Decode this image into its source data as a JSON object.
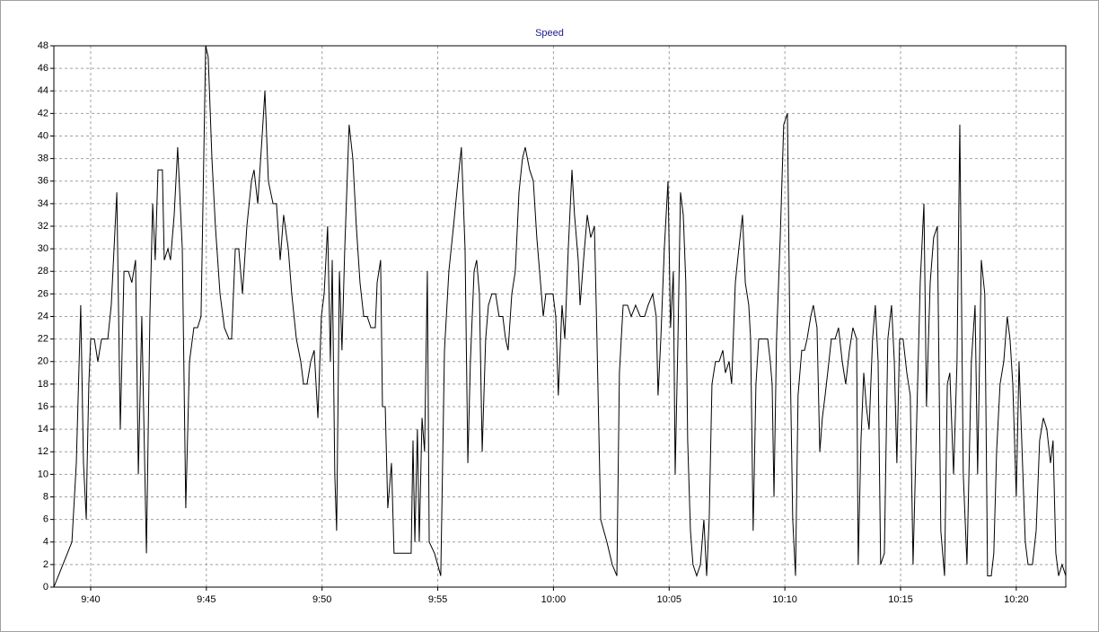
{
  "chart_data": {
    "type": "line",
    "title": "Speed",
    "x": [
      38.41,
      39.19,
      39.38,
      39.57,
      39.69,
      39.81,
      39.84,
      39.92,
      40.0,
      40.16,
      40.31,
      40.47,
      40.74,
      40.89,
      41.13,
      41.28,
      41.44,
      41.63,
      41.78,
      41.94,
      42.06,
      42.21,
      42.41,
      42.56,
      42.68,
      42.79,
      42.91,
      43.1,
      43.18,
      43.34,
      43.45,
      43.61,
      43.76,
      43.96,
      44.11,
      44.27,
      44.46,
      44.62,
      44.77,
      44.97,
      45.08,
      45.24,
      45.39,
      45.59,
      45.78,
      45.98,
      46.09,
      46.25,
      46.4,
      46.56,
      46.75,
      46.95,
      47.06,
      47.22,
      47.41,
      47.53,
      47.68,
      47.88,
      48.03,
      48.19,
      48.34,
      48.54,
      48.69,
      48.89,
      49.08,
      49.2,
      49.35,
      49.51,
      49.66,
      49.82,
      49.97,
      50.09,
      50.24,
      50.36,
      50.44,
      50.55,
      50.63,
      50.75,
      50.86,
      50.98,
      51.17,
      51.33,
      51.48,
      51.64,
      51.8,
      51.95,
      52.11,
      52.3,
      52.38,
      52.53,
      52.61,
      52.73,
      52.84,
      52.92,
      53.0,
      53.11,
      53.35,
      53.62,
      53.85,
      53.93,
      54.01,
      54.12,
      54.2,
      54.32,
      54.43,
      54.55,
      54.63,
      54.86,
      55.13,
      55.29,
      55.48,
      55.68,
      55.87,
      56.02,
      56.18,
      56.3,
      56.41,
      56.57,
      56.68,
      56.8,
      56.92,
      57.07,
      57.19,
      57.34,
      57.5,
      57.65,
      57.81,
      57.93,
      58.04,
      58.2,
      58.35,
      58.51,
      58.66,
      58.78,
      58.97,
      59.13,
      59.28,
      59.44,
      59.56,
      59.67,
      59.83,
      59.98,
      60.1,
      60.21,
      60.37,
      60.49,
      60.64,
      60.8,
      60.91,
      61.07,
      61.15,
      61.3,
      61.46,
      61.61,
      61.77,
      61.88,
      62.04,
      62.31,
      62.54,
      62.74,
      62.85,
      63.01,
      63.2,
      63.36,
      63.55,
      63.75,
      63.94,
      64.09,
      64.29,
      64.44,
      64.52,
      64.64,
      64.79,
      64.95,
      65.06,
      65.18,
      65.26,
      65.38,
      65.49,
      65.61,
      65.72,
      65.8,
      65.92,
      66.03,
      66.19,
      66.35,
      66.5,
      66.62,
      66.73,
      66.85,
      67.0,
      67.16,
      67.32,
      67.43,
      67.59,
      67.7,
      67.86,
      68.01,
      68.17,
      68.29,
      68.44,
      68.52,
      68.63,
      68.75,
      68.87,
      68.98,
      69.14,
      69.26,
      69.37,
      69.45,
      69.53,
      69.64,
      69.8,
      69.95,
      70.11,
      70.23,
      70.34,
      70.46,
      70.57,
      70.73,
      70.85,
      70.96,
      71.12,
      71.23,
      71.39,
      71.51,
      71.62,
      71.74,
      71.85,
      72.01,
      72.17,
      72.32,
      72.48,
      72.63,
      72.79,
      72.94,
      73.1,
      73.17,
      73.29,
      73.41,
      73.52,
      73.64,
      73.79,
      73.91,
      74.03,
      74.14,
      74.3,
      74.45,
      74.61,
      74.73,
      74.84,
      74.96,
      75.11,
      75.27,
      75.42,
      75.54,
      75.7,
      75.85,
      76.01,
      76.12,
      76.28,
      76.43,
      76.59,
      76.74,
      76.9,
      77.02,
      77.13,
      77.29,
      77.44,
      77.56,
      77.71,
      77.87,
      78.06,
      78.22,
      78.33,
      78.49,
      78.64,
      78.76,
      78.92,
      79.03,
      79.15,
      79.3,
      79.46,
      79.61,
      79.73,
      79.85,
      80.0,
      80.12,
      80.27,
      80.39,
      80.51,
      80.7,
      80.86,
      81.01,
      81.17,
      81.32,
      81.48,
      81.59,
      81.71,
      81.83,
      81.98,
      82.14
    ],
    "series": [
      {
        "color": "#000000",
        "values": [
          0,
          4,
          11,
          25,
          11,
          6,
          10,
          18,
          22,
          22,
          20,
          22,
          22,
          25,
          35,
          14,
          28,
          28,
          27,
          29,
          10,
          24,
          3,
          24,
          34,
          29,
          37,
          37,
          29,
          30,
          29,
          33,
          39,
          30,
          7,
          20,
          23,
          23,
          24,
          48,
          47,
          38,
          32,
          26,
          23,
          22,
          22,
          30,
          30,
          26,
          32,
          36,
          37,
          34,
          40,
          44,
          36,
          34,
          34,
          29,
          33,
          30,
          26,
          22,
          20,
          18,
          18,
          20,
          21,
          15,
          24,
          26,
          32,
          20,
          29,
          10,
          5,
          28,
          21,
          30,
          41,
          38,
          32,
          27,
          24,
          24,
          23,
          23,
          27,
          29,
          16,
          16,
          7,
          9,
          11,
          3,
          3,
          3,
          3,
          13,
          4,
          14,
          4,
          15,
          12,
          28,
          4,
          3,
          1,
          21,
          28,
          32,
          36,
          39,
          30,
          11,
          20,
          28,
          29,
          26,
          12,
          22,
          25,
          26,
          26,
          24,
          24,
          22,
          21,
          26,
          28,
          35,
          38,
          39,
          37,
          36,
          31,
          27,
          24,
          26,
          26,
          26,
          24,
          17,
          25,
          22,
          30,
          37,
          33,
          29,
          25,
          29,
          33,
          31,
          32,
          22,
          6,
          4,
          2,
          1,
          19,
          25,
          25,
          24,
          25,
          24,
          24,
          25,
          26,
          24,
          17,
          22,
          30,
          36,
          23,
          28,
          10,
          22,
          35,
          33,
          27,
          13,
          5,
          2,
          1,
          2,
          6,
          1,
          6,
          18,
          20,
          20,
          21,
          19,
          20,
          18,
          27,
          30,
          33,
          27,
          25,
          22,
          5,
          18,
          22,
          22,
          22,
          22,
          20,
          18,
          8,
          22,
          31,
          41,
          42,
          20,
          6,
          1,
          17,
          21,
          21,
          22,
          24,
          25,
          23,
          12,
          15,
          17,
          19,
          22,
          22,
          23,
          20,
          18,
          21,
          23,
          22,
          2,
          13,
          19,
          16,
          14,
          22,
          25,
          20,
          2,
          3,
          22,
          25,
          20,
          11,
          22,
          22,
          19,
          17,
          2,
          15,
          27,
          34,
          16,
          27,
          31,
          32,
          5,
          1,
          18,
          19,
          10,
          20,
          41,
          10,
          2,
          20,
          25,
          10,
          29,
          26,
          1,
          1,
          3,
          12,
          18,
          20,
          24,
          22,
          18,
          8,
          20,
          11,
          4,
          2,
          2,
          5,
          13,
          15,
          14,
          11,
          13,
          3,
          1,
          2,
          1
        ]
      }
    ],
    "xlim": [
      38.41,
      82.14
    ],
    "xticks": [
      {
        "value": 40,
        "label": "9:40"
      },
      {
        "value": 45,
        "label": "9:45"
      },
      {
        "value": 50,
        "label": "9:50"
      },
      {
        "value": 55,
        "label": "9:55"
      },
      {
        "value": 60,
        "label": "10:00"
      },
      {
        "value": 65,
        "label": "10:05"
      },
      {
        "value": 70,
        "label": "10:10"
      },
      {
        "value": 75,
        "label": "10:15"
      },
      {
        "value": 80,
        "label": "10:20"
      }
    ],
    "ylim": [
      0,
      48
    ],
    "yticks": [
      0,
      2,
      4,
      6,
      8,
      10,
      12,
      14,
      16,
      18,
      20,
      22,
      24,
      26,
      28,
      30,
      32,
      34,
      36,
      38,
      40,
      42,
      44,
      46,
      48
    ],
    "grid": true
  }
}
